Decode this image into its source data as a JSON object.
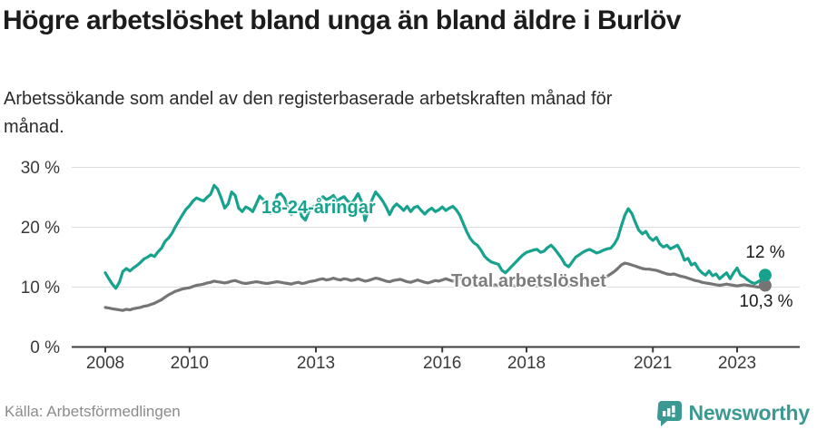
{
  "header": {
    "title": "Högre arbetslöshet bland unga än bland äldre i Burlöv",
    "subtitle": "Arbetssökande som andel av den registerbaserade arbetskraften månad för månad."
  },
  "footer": {
    "source": "Källa: Arbetsförmedlingen",
    "brand": "Newsworthy"
  },
  "colors": {
    "young_line": "#17a28e",
    "total_line": "#757575",
    "grid": "#dcdcdc",
    "axis": "#3d3d3d",
    "tick_text": "#3a3a3a",
    "brand_teal": "#3a9a93"
  },
  "chart_data": {
    "type": "line",
    "title": "Högre arbetslöshet bland unga än bland äldre i Burlöv",
    "xlabel": "",
    "ylabel": "Arbetssökande som andel av den registerbaserade arbetskraften",
    "frequency": "monthly",
    "x_start": {
      "year": 2008,
      "month": 1
    },
    "x_end": {
      "year": 2023,
      "month": 9
    },
    "x_ticks": [
      2008,
      2010,
      2013,
      2016,
      2018,
      2021,
      2023
    ],
    "x_tick_labels": [
      "2008",
      "2010",
      "2013",
      "2016",
      "2018",
      "2021",
      "2023"
    ],
    "y_ticks": [
      0,
      10,
      20,
      30
    ],
    "y_tick_labels": [
      "0 %",
      "10 %",
      "20 %",
      "30 %"
    ],
    "ylim": [
      0,
      32
    ],
    "grid": "horizontal",
    "legend_position": "inline-labels",
    "series": [
      {
        "name": "Total arbetslöshet",
        "color": "#757575",
        "end_label": "10,3 %",
        "end_value": 10.3,
        "values": [
          6.6,
          6.5,
          6.4,
          6.3,
          6.2,
          6.1,
          6.3,
          6.2,
          6.4,
          6.5,
          6.6,
          6.8,
          6.9,
          7.1,
          7.3,
          7.6,
          7.9,
          8.3,
          8.7,
          9.0,
          9.3,
          9.5,
          9.7,
          9.8,
          9.9,
          10.1,
          10.3,
          10.4,
          10.5,
          10.7,
          10.8,
          11.0,
          10.9,
          10.8,
          10.7,
          10.8,
          11.0,
          11.1,
          10.9,
          10.7,
          10.6,
          10.7,
          10.8,
          10.9,
          10.8,
          10.7,
          10.6,
          10.7,
          10.8,
          10.9,
          10.8,
          10.7,
          10.6,
          10.5,
          10.7,
          10.8,
          10.6,
          10.7,
          10.9,
          11.0,
          11.1,
          11.3,
          11.4,
          11.2,
          11.3,
          11.5,
          11.3,
          11.2,
          11.4,
          11.3,
          11.1,
          11.2,
          11.4,
          11.2,
          11.0,
          11.1,
          11.3,
          11.5,
          11.4,
          11.2,
          11.0,
          10.9,
          11.1,
          11.2,
          11.3,
          11.1,
          10.9,
          10.8,
          11.0,
          11.2,
          11.0,
          10.8,
          10.7,
          10.9,
          11.1,
          11.0,
          11.2,
          11.4,
          11.2,
          11.0,
          11.3,
          11.5,
          11.3,
          11.1,
          10.9,
          10.8,
          10.7,
          10.6,
          10.5,
          10.4,
          10.3,
          10.4,
          10.3,
          10.2,
          10.3,
          10.4,
          10.3,
          10.2,
          10.3,
          10.4,
          10.5,
          10.4,
          10.3,
          10.2,
          10.3,
          10.2,
          10.1,
          10.2,
          10.3,
          10.4,
          10.5,
          10.6,
          10.3,
          10.2,
          10.3,
          10.4,
          10.5,
          10.6,
          10.8,
          11.0,
          11.2,
          11.3,
          11.5,
          11.8,
          12.2,
          12.6,
          13.1,
          13.7,
          14.0,
          13.9,
          13.7,
          13.5,
          13.3,
          13.1,
          13.0,
          13.0,
          12.9,
          12.8,
          12.6,
          12.4,
          12.2,
          12.1,
          12.2,
          12.0,
          11.8,
          11.7,
          11.5,
          11.3,
          11.1,
          11.0,
          10.8,
          10.7,
          10.6,
          10.5,
          10.4,
          10.3,
          10.4,
          10.5,
          10.4,
          10.3,
          10.2,
          10.3,
          10.4,
          10.3,
          10.2,
          10.1,
          10.0,
          10.1,
          10.3
        ]
      },
      {
        "name": "18-24-åringar",
        "color": "#17a28e",
        "end_label": "12 %",
        "end_value": 12.0,
        "values": [
          12.4,
          11.4,
          10.5,
          9.8,
          10.8,
          12.6,
          13.1,
          12.7,
          13.2,
          13.6,
          14.1,
          14.7,
          15.0,
          15.4,
          15.1,
          15.9,
          16.5,
          17.6,
          18.2,
          19.0,
          20.1,
          21.1,
          22.1,
          23.0,
          23.6,
          24.4,
          24.9,
          24.6,
          24.4,
          25.0,
          25.5,
          27.0,
          26.4,
          24.9,
          23.2,
          23.9,
          25.9,
          25.3,
          23.2,
          22.6,
          23.4,
          23.1,
          22.6,
          23.9,
          25.2,
          24.6,
          23.0,
          22.3,
          23.3,
          25.4,
          25.6,
          24.9,
          23.3,
          22.1,
          24.1,
          23.6,
          21.8,
          21.2,
          22.6,
          23.4,
          23.7,
          24.5,
          25.1,
          24.6,
          24.9,
          25.3,
          24.4,
          24.8,
          25.1,
          24.4,
          24.0,
          24.6,
          25.6,
          24.3,
          21.1,
          23.1,
          24.6,
          25.9,
          25.2,
          24.4,
          23.4,
          22.1,
          23.3,
          23.9,
          23.4,
          22.8,
          23.5,
          22.6,
          23.3,
          23.5,
          22.8,
          22.2,
          22.8,
          23.2,
          22.6,
          22.9,
          23.4,
          22.8,
          23.2,
          23.5,
          22.9,
          22.0,
          20.6,
          19.2,
          18.1,
          17.4,
          17.0,
          16.2,
          15.2,
          14.6,
          14.2,
          14.0,
          13.8,
          12.8,
          12.4,
          13.0,
          13.6,
          14.2,
          14.8,
          15.4,
          15.8,
          16.0,
          16.2,
          16.3,
          15.8,
          16.0,
          16.6,
          17.0,
          16.4,
          15.6,
          14.8,
          13.8,
          13.4,
          14.2,
          15.0,
          15.4,
          15.8,
          16.1,
          16.3,
          16.0,
          15.7,
          15.9,
          16.2,
          16.4,
          16.5,
          17.2,
          18.2,
          20.2,
          22.0,
          23.1,
          22.3,
          20.8,
          19.5,
          18.9,
          19.3,
          18.3,
          17.8,
          18.3,
          17.2,
          16.7,
          17.0,
          16.4,
          16.7,
          17.0,
          16.0,
          14.5,
          14.8,
          13.7,
          14.0,
          13.0,
          12.4,
          12.0,
          12.7,
          11.9,
          12.2,
          11.4,
          11.9,
          12.4,
          11.4,
          12.4,
          13.2,
          12.0,
          11.7,
          11.2,
          10.8,
          10.6,
          10.9,
          11.3,
          12.0
        ]
      }
    ]
  }
}
